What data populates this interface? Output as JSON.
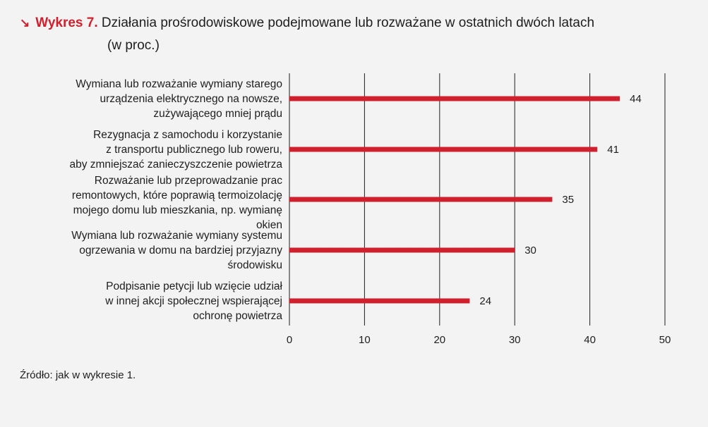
{
  "title": {
    "arrow_icon": "arrow-down-right-icon",
    "prefix": "Wykres 7.",
    "text": "Działania prośrodowiskowe podejmowane lub rozważane w ostatnich dwóch latach",
    "line2": "(w proc.)"
  },
  "colors": {
    "accent": "#d0202e",
    "bar": "#d0202e",
    "grid": "#1e1e1e"
  },
  "chart_data": {
    "type": "bar",
    "orientation": "horizontal",
    "categories": [
      [
        "Wymiana lub rozważanie wymiany starego",
        "urządzenia elektrycznego na nowsze,",
        "zużywającego mniej prądu"
      ],
      [
        "Rezygnacja z samochodu i korzystanie",
        "z transportu publicznego lub roweru,",
        "aby zmniejszać zanieczyszczenie powietrza"
      ],
      [
        "Rozważanie lub przeprowadzanie prac",
        "remontowych, które poprawią termoizolację",
        "mojego domu lub mieszkania, np. wymianę",
        "okien"
      ],
      [
        "Wymiana lub rozważanie wymiany systemu",
        "ogrzewania w domu na bardziej przyjazny",
        "środowisku"
      ],
      [
        "Podpisanie petycji lub wzięcie udział",
        "w innej akcji społecznej wspierającej",
        "ochronę powietrza"
      ]
    ],
    "values": [
      44,
      41,
      35,
      30,
      24
    ],
    "value_labels": [
      "44",
      "41",
      "35",
      "30",
      "24"
    ],
    "xlim": [
      0,
      50
    ],
    "xticks": [
      "0",
      "10",
      "20",
      "30",
      "40",
      "50"
    ],
    "grid": true
  },
  "source": "Źródło: jak w wykresie 1."
}
